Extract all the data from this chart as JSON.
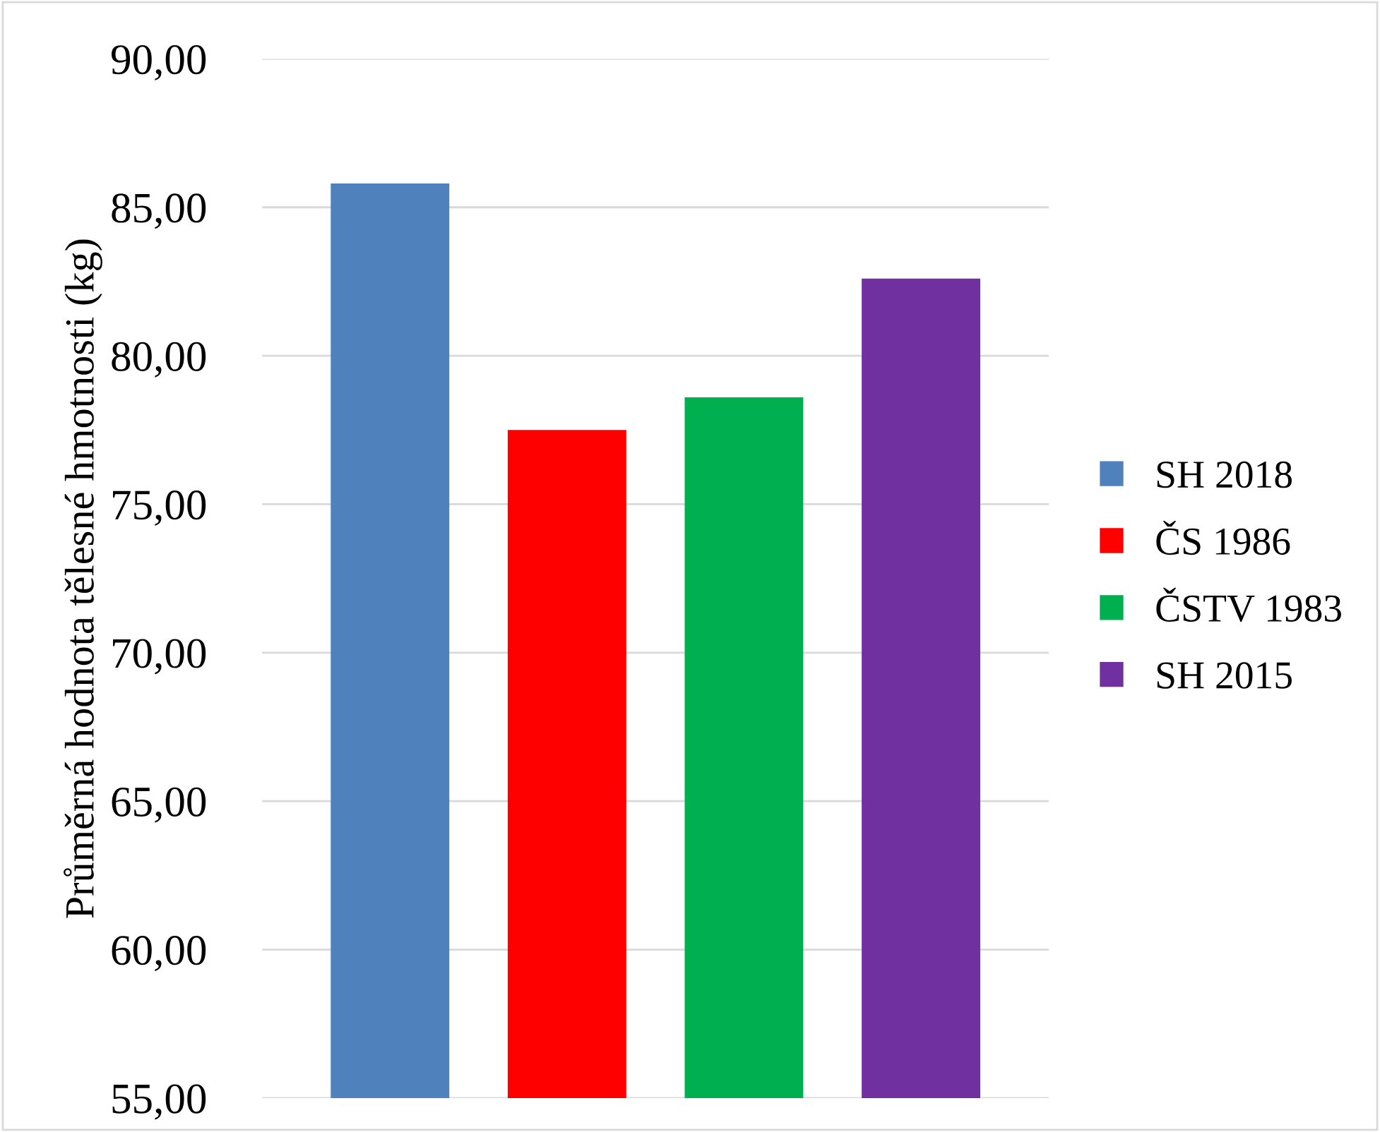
{
  "chart_data": {
    "type": "bar",
    "ylabel": "Průměrná hodnota tělesné hmotnosti (kg)",
    "categories": [
      null
    ],
    "series": [
      {
        "name": "SH 2018",
        "color": "#4f81bd",
        "values": [
          85.8
        ]
      },
      {
        "name": "ČS 1986",
        "color": "#ff0000",
        "values": [
          77.5
        ]
      },
      {
        "name": "ČSTV 1983",
        "color": "#00b050",
        "values": [
          78.6
        ]
      },
      {
        "name": "SH 2015",
        "color": "#7030a0",
        "values": [
          82.6
        ]
      }
    ],
    "ylim": [
      55,
      90
    ],
    "yticks": [
      {
        "value": 55,
        "label": "55,00"
      },
      {
        "value": 60,
        "label": "60,00"
      },
      {
        "value": 65,
        "label": "65,00"
      },
      {
        "value": 70,
        "label": "70,00"
      },
      {
        "value": 75,
        "label": "75,00"
      },
      {
        "value": 80,
        "label": "80,00"
      },
      {
        "value": 85,
        "label": "85,00"
      },
      {
        "value": 90,
        "label": "90,00"
      }
    ],
    "grid": "y",
    "legend": "right"
  }
}
